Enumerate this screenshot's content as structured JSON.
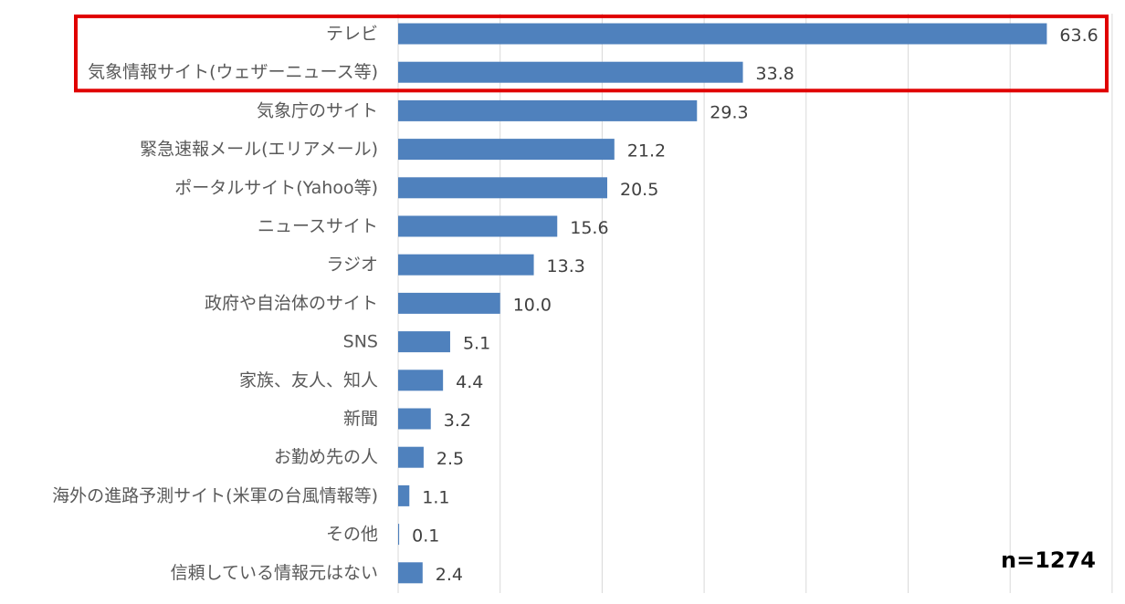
{
  "chart_data": {
    "type": "bar",
    "orientation": "horizontal",
    "categories": [
      "テレビ",
      "気象情報サイト(ウェザーニュース等)",
      "気象庁のサイト",
      "緊急速報メール(エリアメール)",
      "ポータルサイト(Yahoo等)",
      "ニュースサイト",
      "ラジオ",
      "政府や自治体のサイト",
      "SNS",
      "家族、友人、知人",
      "新聞",
      "お勤め先の人",
      "海外の進路予測サイト(米軍の台風情報等)",
      "その他",
      "信頼している情報元はない"
    ],
    "values": [
      63.6,
      33.8,
      29.3,
      21.2,
      20.5,
      15.6,
      13.3,
      10.0,
      5.1,
      4.4,
      3.2,
      2.5,
      1.1,
      0.1,
      2.4
    ],
    "value_labels": [
      "63.6",
      "33.8",
      "29.3",
      "21.2",
      "20.5",
      "15.6",
      "13.3",
      "10.0",
      "5.1",
      "4.4",
      "3.2",
      "2.5",
      "1.1",
      "0.1",
      "2.4"
    ],
    "xlim": [
      0,
      70
    ],
    "grid": true,
    "grid_step": 10,
    "annotation": "n=1274",
    "highlighted_categories": [
      0,
      1
    ],
    "colors": {
      "bar": "#4f81bd",
      "grid": "#d9d9d9",
      "highlight_box": "#e00000",
      "label": "#595959",
      "value": "#404040",
      "annotation": "#000000"
    }
  }
}
